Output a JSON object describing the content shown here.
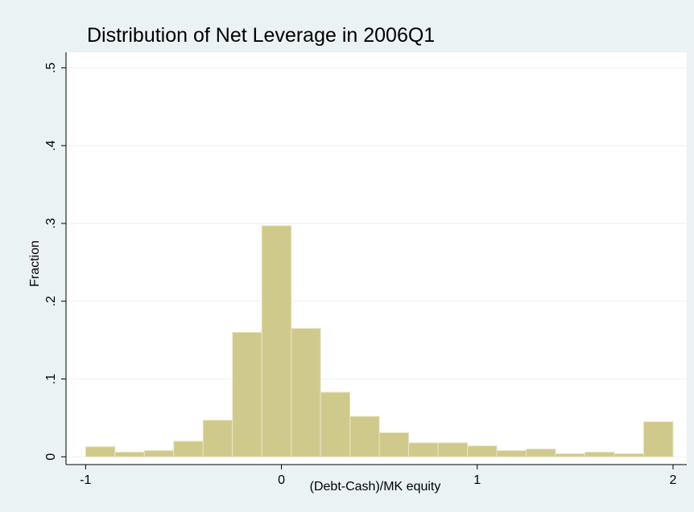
{
  "chart_data": {
    "type": "histogram",
    "title": "Distribution of Net Leverage in 2006Q1",
    "x_label": "(Debt-Cash)/MK equity",
    "y_label": "Fraction",
    "bins": [
      -1,
      -0.85,
      -0.7,
      -0.55,
      -0.4,
      -0.25,
      -0.1,
      0.05,
      0.2,
      0.35,
      0.5,
      0.65,
      0.8,
      0.95,
      1.1,
      1.25,
      1.4,
      1.55,
      1.7,
      1.85,
      2
    ],
    "values": [
      0.013,
      0.006,
      0.008,
      0.02,
      0.047,
      0.16,
      0.297,
      0.165,
      0.083,
      0.052,
      0.031,
      0.018,
      0.018,
      0.014,
      0.008,
      0.01,
      0.004,
      0.006,
      0.004,
      0.045
    ],
    "color": "#cfc98b",
    "xlim": [
      -1.1,
      2.07
    ],
    "xticks": [
      {
        "value": -1,
        "label": "-1"
      },
      0,
      1,
      2
    ],
    "ylim": [
      -0.01,
      0.52
    ],
    "yticks": [
      0,
      {
        "value": 0.1,
        "label": ".1"
      },
      {
        "value": 0.2,
        "label": ".2"
      },
      {
        "value": 0.3,
        "label": ".3"
      },
      {
        "value": 0.4,
        "label": ".4"
      },
      {
        "value": 0.5,
        "label": ".5"
      }
    ],
    "grid": true
  }
}
